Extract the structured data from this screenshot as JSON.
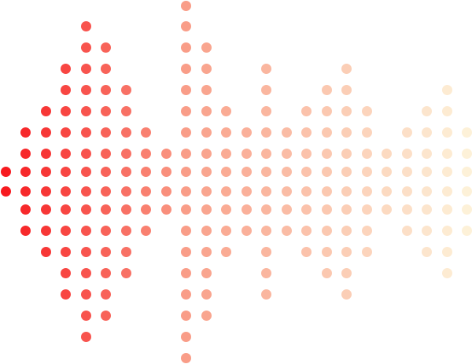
{
  "graphic": {
    "type": "dot-matrix sound wave",
    "column_dot_counts": [
      2,
      6,
      8,
      12,
      16,
      14,
      10,
      6,
      4,
      18,
      14,
      8,
      6,
      12,
      6,
      8,
      10,
      12,
      8,
      4,
      6,
      8,
      10,
      6
    ],
    "color_start": "#f71a1f",
    "color_mid": "#f9a08a",
    "color_end": "#fdf1d8"
  }
}
